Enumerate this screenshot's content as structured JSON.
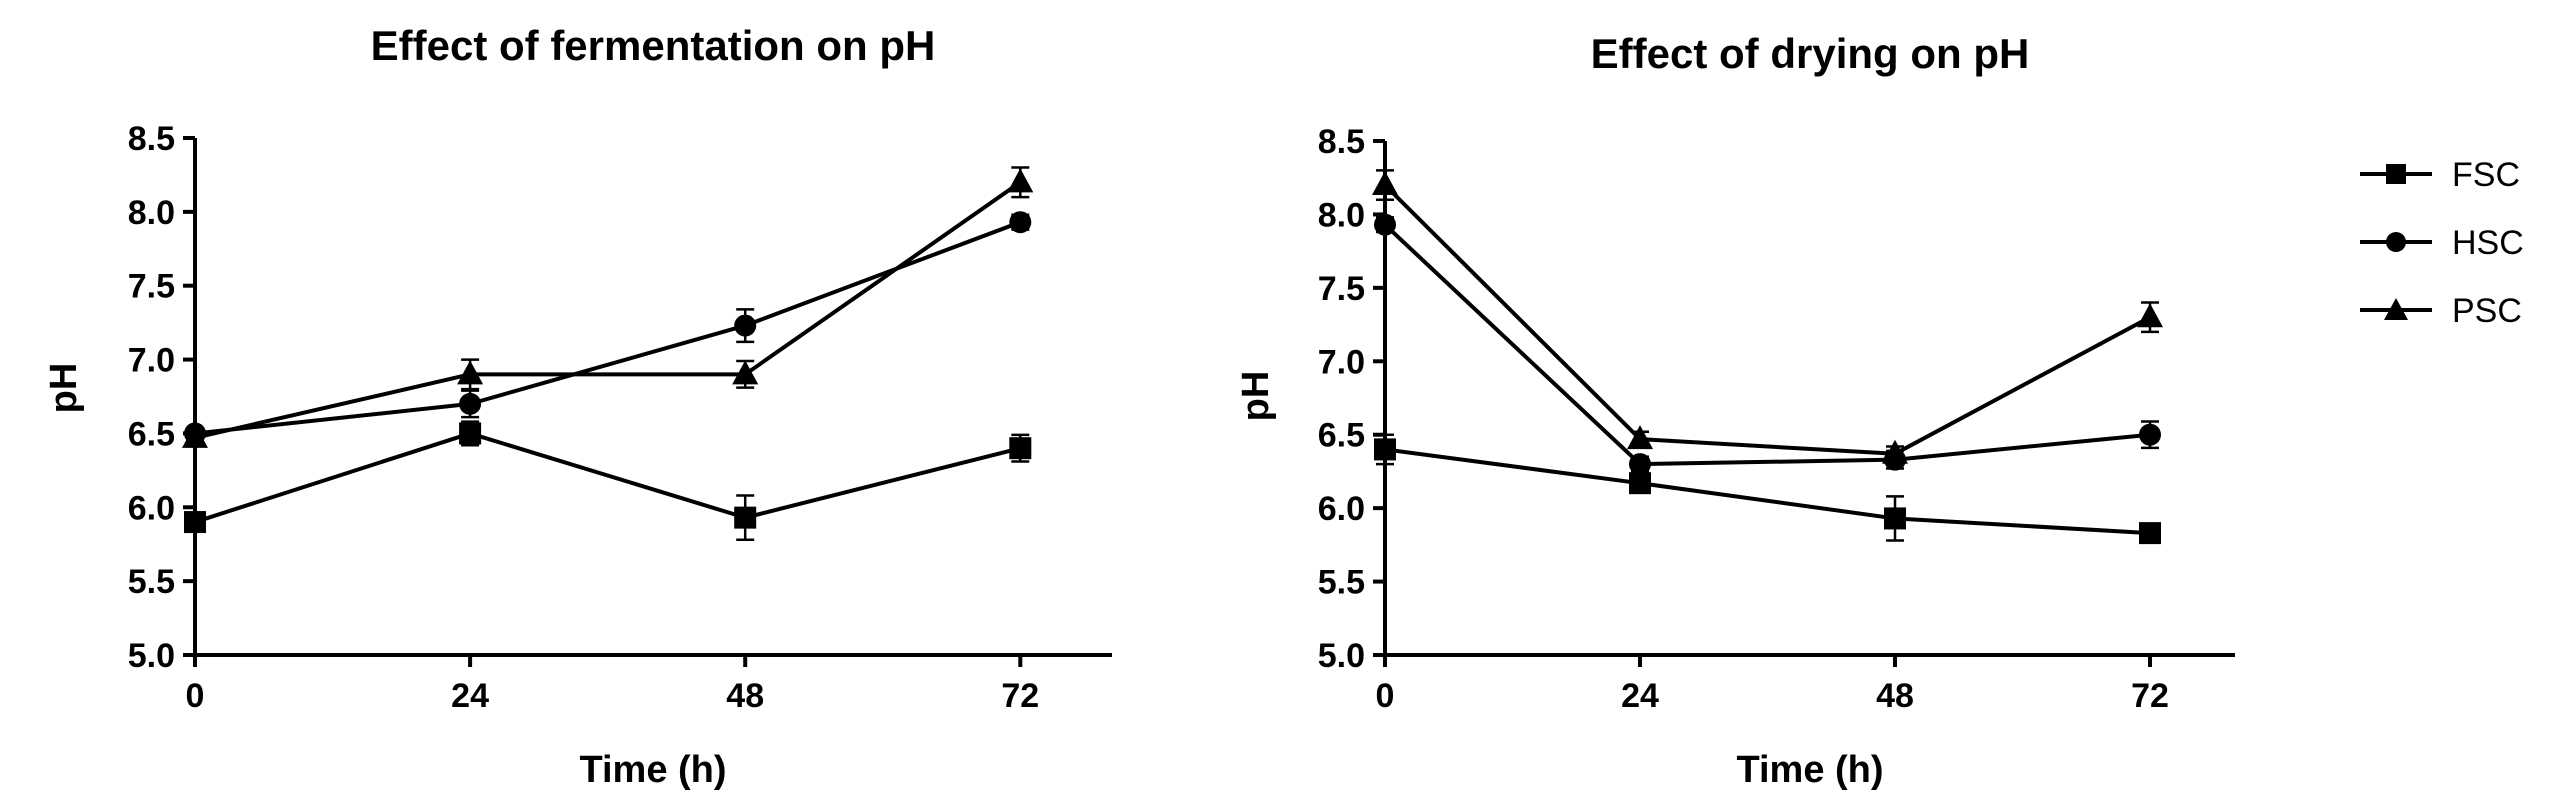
{
  "chart_data": [
    {
      "type": "line",
      "title": "Effect of fermentation on pH",
      "xlabel": "Time (h)",
      "ylabel": "pH",
      "x": [
        0,
        24,
        48,
        72
      ],
      "xlim": [
        0,
        80
      ],
      "ylim": [
        5.0,
        8.5
      ],
      "xticks": [
        "0",
        "24",
        "48",
        "72"
      ],
      "yticks": [
        "5.0",
        "5.5",
        "6.0",
        "6.5",
        "7.0",
        "7.5",
        "8.0",
        "8.5"
      ],
      "grid": false,
      "series": [
        {
          "name": "FSC",
          "marker": "square",
          "values": [
            5.9,
            6.5,
            5.93,
            6.4
          ],
          "errors": [
            0.02,
            0.08,
            0.15,
            0.09
          ]
        },
        {
          "name": "HSC",
          "marker": "circle",
          "values": [
            6.5,
            6.7,
            7.23,
            7.93
          ],
          "errors": [
            0.02,
            0.09,
            0.11,
            0.05
          ]
        },
        {
          "name": "PSC",
          "marker": "triangle",
          "values": [
            6.47,
            6.9,
            6.9,
            8.2
          ],
          "errors": [
            0.02,
            0.1,
            0.09,
            0.1
          ]
        }
      ]
    },
    {
      "type": "line",
      "title": "Effect of drying on pH",
      "xlabel": "Time (h)",
      "ylabel": "pH",
      "x": [
        0,
        24,
        48,
        72
      ],
      "xlim": [
        0,
        80
      ],
      "ylim": [
        5.0,
        8.5
      ],
      "xticks": [
        "0",
        "24",
        "48",
        "72"
      ],
      "yticks": [
        "5.0",
        "5.5",
        "6.0",
        "6.5",
        "7.0",
        "7.5",
        "8.0",
        "8.5"
      ],
      "grid": false,
      "series": [
        {
          "name": "FSC",
          "marker": "square",
          "values": [
            6.4,
            6.17,
            5.93,
            5.83
          ],
          "errors": [
            0.1,
            0.04,
            0.15,
            0.04
          ]
        },
        {
          "name": "HSC",
          "marker": "circle",
          "values": [
            7.93,
            6.3,
            6.33,
            6.5
          ],
          "errors": [
            0.05,
            0.05,
            0.06,
            0.09
          ]
        },
        {
          "name": "PSC",
          "marker": "triangle",
          "values": [
            8.2,
            6.47,
            6.37,
            7.3
          ],
          "errors": [
            0.1,
            0.05,
            0.05,
            0.1
          ]
        }
      ]
    }
  ],
  "legend": {
    "placement": "right",
    "items": [
      {
        "label": "FSC",
        "marker": "square"
      },
      {
        "label": "HSC",
        "marker": "circle"
      },
      {
        "label": "PSC",
        "marker": "triangle"
      }
    ]
  }
}
